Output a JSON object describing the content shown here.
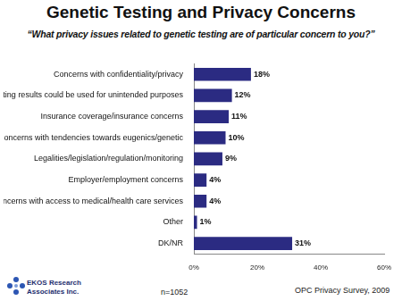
{
  "chart_data": {
    "type": "bar",
    "title": "Genetic Testing and Privacy Concerns",
    "subtitle": "“What privacy issues related to genetic testing are of particular concern to you?”",
    "categories": [
      "Concerns with confidentiality/privacy",
      "Genetic testing results could be used for unintended purposes",
      "Insurance coverage/insurance concerns",
      "Concerns with tendencies towards eugenics/genetic",
      "Legalities/legislation/regulation/monitoring",
      "Employer/employment concerns",
      "Concerns with access to medical/health care services",
      "Other",
      "DK/NR"
    ],
    "values": [
      18,
      12,
      11,
      10,
      9,
      4,
      4,
      1,
      31
    ],
    "value_labels": [
      "18%",
      "12%",
      "11%",
      "10%",
      "9%",
      "4%",
      "4%",
      "1%",
      "31%"
    ],
    "color": "#2b2b82",
    "orientation": "horizontal",
    "data_labels": true,
    "grid": false,
    "xlim": [
      0,
      60
    ],
    "xticks": [
      {
        "value": 0,
        "label": "0%"
      },
      {
        "value": 20,
        "label": "20%"
      },
      {
        "value": 40,
        "label": "40%"
      },
      {
        "value": 60,
        "label": "60%"
      }
    ],
    "annotations": [
      "EKOS Research Associates Inc.",
      "n=1052",
      "OPC Privacy Survey, 2009"
    ]
  }
}
